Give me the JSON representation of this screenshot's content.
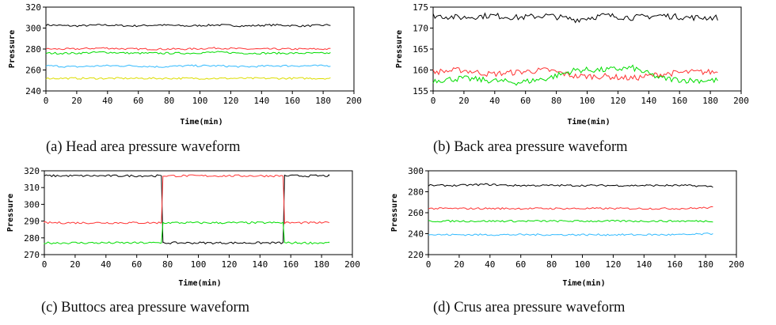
{
  "chart_data": [
    {
      "type": "line",
      "caption": "(a) Head area pressure waveform",
      "xlabel": "Time(min)",
      "ylabel": "Pressure",
      "xlim": [
        0,
        200
      ],
      "ylim": [
        240,
        320
      ],
      "xticks": [
        0,
        20,
        40,
        60,
        80,
        100,
        120,
        140,
        160,
        180,
        200
      ],
      "yticks": [
        240,
        260,
        280,
        300,
        320
      ],
      "grid": false,
      "series": [
        {
          "color": "#000000",
          "x_range": [
            0,
            185
          ],
          "values": [
            303,
            302,
            303,
            302,
            303,
            302,
            303,
            302,
            303,
            302,
            303
          ]
        },
        {
          "color": "#ff3333",
          "x_range": [
            0,
            185
          ],
          "values": [
            280,
            280,
            281,
            280,
            280,
            280,
            281,
            280,
            280,
            280,
            280
          ]
        },
        {
          "color": "#00dd00",
          "x_range": [
            0,
            185
          ],
          "values": [
            276,
            276,
            277,
            276,
            276,
            276,
            277,
            276,
            276,
            276,
            276
          ]
        },
        {
          "color": "#33bbff",
          "x_range": [
            0,
            185
          ],
          "values": [
            264,
            263,
            264,
            264,
            263,
            264,
            264,
            263,
            264,
            264,
            264
          ]
        },
        {
          "color": "#dddd00",
          "x_range": [
            0,
            185
          ],
          "values": [
            252,
            252,
            252,
            252,
            252,
            252,
            252,
            252,
            252,
            252,
            252
          ]
        }
      ]
    },
    {
      "type": "line",
      "caption": "(b) Back area pressure waveform",
      "xlabel": "Time(min)",
      "ylabel": "Pressure",
      "xlim": [
        0,
        200
      ],
      "ylim": [
        155,
        175
      ],
      "xticks": [
        0,
        20,
        40,
        60,
        80,
        100,
        120,
        140,
        160,
        180,
        200
      ],
      "yticks": [
        155,
        160,
        165,
        170,
        175
      ],
      "grid": false,
      "series": [
        {
          "color": "#000000",
          "x_range": [
            0,
            185
          ],
          "values": [
            173,
            172.5,
            173,
            172.5,
            173,
            172,
            173,
            172.5,
            173,
            172.5,
            172.5
          ]
        },
        {
          "color": "#ff3333",
          "x_range": [
            0,
            185
          ],
          "values": [
            159.5,
            160,
            159,
            159.5,
            160,
            158.5,
            158.5,
            158,
            159,
            159.5,
            159.5
          ]
        },
        {
          "color": "#00dd00",
          "x_range": [
            0,
            185
          ],
          "values": [
            157.5,
            158,
            157.5,
            157,
            158,
            160,
            160,
            160.5,
            158,
            157.5,
            157.5
          ]
        }
      ]
    },
    {
      "type": "line",
      "caption": "(c) Buttocs area pressure waveform",
      "xlabel": "Time(min)",
      "ylabel": "Pressure",
      "xlim": [
        0,
        200
      ],
      "ylim": [
        270,
        320
      ],
      "xticks": [
        0,
        20,
        40,
        60,
        80,
        100,
        120,
        140,
        160,
        180,
        200
      ],
      "yticks": [
        270,
        280,
        290,
        300,
        310,
        320
      ],
      "grid": false,
      "series": [
        {
          "color": "#000000",
          "x": [
            0,
            76,
            77,
            155,
            156,
            185
          ],
          "values": [
            317,
            317,
            277,
            277,
            317,
            317
          ]
        },
        {
          "color": "#ff3333",
          "x": [
            0,
            76,
            77,
            155,
            156,
            185
          ],
          "values": [
            289,
            289,
            317,
            317,
            289,
            289
          ]
        },
        {
          "color": "#00dd00",
          "x": [
            0,
            76,
            77,
            155,
            156,
            185
          ],
          "values": [
            277,
            277,
            289,
            289,
            277,
            277
          ]
        }
      ]
    },
    {
      "type": "line",
      "caption": "(d) Crus area pressure waveform",
      "xlabel": "Time(min)",
      "ylabel": "Pressure",
      "xlim": [
        0,
        200
      ],
      "ylim": [
        220,
        300
      ],
      "xticks": [
        0,
        20,
        40,
        60,
        80,
        100,
        120,
        140,
        160,
        180,
        200
      ],
      "yticks": [
        220,
        240,
        260,
        280,
        300
      ],
      "grid": false,
      "series": [
        {
          "color": "#000000",
          "x_range": [
            0,
            185
          ],
          "values": [
            286,
            286,
            287,
            286,
            286,
            286,
            286,
            286,
            286,
            286,
            285
          ]
        },
        {
          "color": "#ff3333",
          "x_range": [
            0,
            185
          ],
          "values": [
            264,
            264,
            264,
            264,
            264,
            264,
            264,
            264,
            264,
            264,
            265
          ]
        },
        {
          "color": "#00dd00",
          "x_range": [
            0,
            185
          ],
          "values": [
            252,
            252,
            252,
            252,
            252,
            252,
            252,
            252,
            252,
            252,
            252
          ]
        },
        {
          "color": "#33bbff",
          "x_range": [
            0,
            185
          ],
          "values": [
            239,
            239,
            239,
            239,
            239,
            239,
            239,
            239,
            239,
            239,
            240
          ]
        }
      ]
    }
  ]
}
